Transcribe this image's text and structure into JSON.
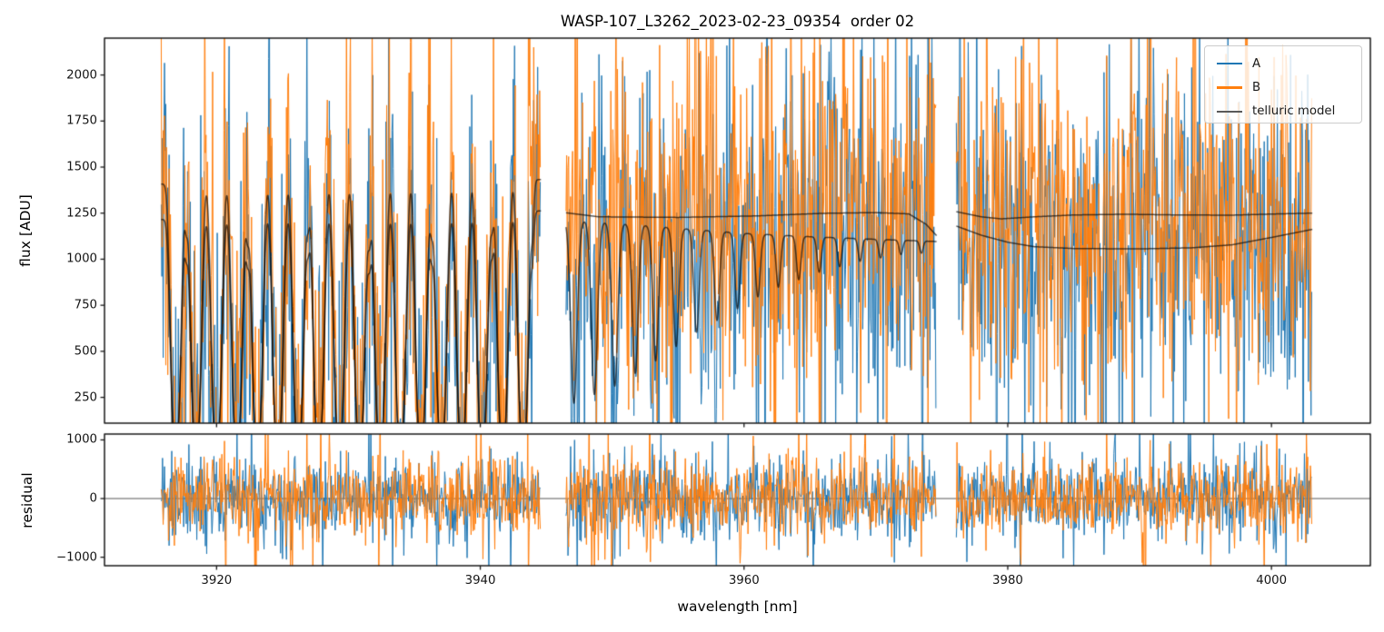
{
  "chart_data": {
    "type": "line",
    "title": "WASP-107_L3262_2023-02-23_09354  order 02",
    "xlabel": "wavelength [nm]",
    "xlim": [
      3911.5,
      4007.5
    ],
    "xticks": [
      3920,
      3940,
      3960,
      3980,
      4000
    ],
    "xtick_labels": [
      "3920",
      "3940",
      "3960",
      "3980",
      "4000"
    ],
    "panels": [
      {
        "id": "flux",
        "ylabel": "flux [ADU]",
        "ylim": [
          110,
          2200
        ],
        "yticks": [
          250,
          500,
          750,
          1000,
          1250,
          1500,
          1750,
          2000
        ],
        "ytick_labels": [
          "250",
          "500",
          "750",
          "1000",
          "1250",
          "1500",
          "1750",
          "2000"
        ],
        "zero_line": false
      },
      {
        "id": "residual",
        "ylabel": "residual",
        "ylim": [
          -1145,
          1100
        ],
        "yticks": [
          -1000,
          0,
          1000
        ],
        "ytick_labels": [
          "−1000",
          "0",
          "1000"
        ],
        "zero_line": true
      }
    ],
    "legend": [
      {
        "label": "A",
        "color": "#1f77b4"
      },
      {
        "label": "B",
        "color": "#ff7f0e"
      },
      {
        "label": "telluric model",
        "color": "#595959"
      }
    ],
    "style": {
      "model_color": "rgba(0,0,0,0.65)",
      "zero_line_color": "#595959",
      "spine_color": "#1a1a1a",
      "tick_color": "#1a1a1a",
      "data_linewidth": 1.0,
      "model_linewidth": 1.5
    },
    "sample_step_nm": 0.05,
    "segments": [
      {
        "range": [
          3915.8,
          3944.6
        ],
        "curves": [
          {
            "continuum": [
              [
                3915.8,
                1408
              ],
              [
                3930,
                1418
              ],
              [
                3944.6,
                1432
              ]
            ],
            "lines": true
          },
          {
            "continuum": [
              [
                3915.8,
                1215
              ],
              [
                3922,
                1252
              ],
              [
                3935,
                1248
              ],
              [
                3944.6,
                1262
              ]
            ],
            "lines": true
          }
        ],
        "lines": [
          {
            "c": 3916.9,
            "w": 0.5,
            "d": 1.0,
            "p": 3
          },
          {
            "c": 3918.45,
            "w": 0.5,
            "d": 1.0,
            "p": 3
          },
          {
            "c": 3920.0,
            "w": 0.5,
            "d": 1.0,
            "p": 3
          },
          {
            "c": 3921.55,
            "w": 0.5,
            "d": 1.0,
            "p": 3
          },
          {
            "c": 3923.1,
            "w": 0.5,
            "d": 1.0,
            "p": 3
          },
          {
            "c": 3924.65,
            "w": 0.5,
            "d": 1.0,
            "p": 3
          },
          {
            "c": 3926.2,
            "w": 0.5,
            "d": 1.0,
            "p": 3
          },
          {
            "c": 3927.75,
            "w": 0.5,
            "d": 1.0,
            "p": 3
          },
          {
            "c": 3929.3,
            "w": 0.5,
            "d": 1.0,
            "p": 3
          },
          {
            "c": 3930.85,
            "w": 0.5,
            "d": 1.0,
            "p": 3
          },
          {
            "c": 3932.4,
            "w": 0.5,
            "d": 1.0,
            "p": 3
          },
          {
            "c": 3933.95,
            "w": 0.5,
            "d": 1.0,
            "p": 3
          },
          {
            "c": 3935.5,
            "w": 0.5,
            "d": 1.0,
            "p": 3
          },
          {
            "c": 3937.05,
            "w": 0.5,
            "d": 1.0,
            "p": 3
          },
          {
            "c": 3938.6,
            "w": 0.5,
            "d": 1.0,
            "p": 3
          },
          {
            "c": 3940.15,
            "w": 0.5,
            "d": 1.0,
            "p": 3
          },
          {
            "c": 3941.7,
            "w": 0.5,
            "d": 1.0,
            "p": 3
          },
          {
            "c": 3943.25,
            "w": 0.5,
            "d": 1.0,
            "p": 3
          },
          {
            "c": 3917.7,
            "w": 0.18,
            "d": 0.16,
            "p": 2
          },
          {
            "c": 3922.35,
            "w": 0.2,
            "d": 0.2,
            "p": 2
          },
          {
            "c": 3926.95,
            "w": 0.18,
            "d": 0.15,
            "p": 2
          },
          {
            "c": 3931.6,
            "w": 0.2,
            "d": 0.22,
            "p": 2
          },
          {
            "c": 3936.3,
            "w": 0.2,
            "d": 0.18,
            "p": 2
          },
          {
            "c": 3940.9,
            "w": 0.18,
            "d": 0.16,
            "p": 2
          },
          {
            "c": 3943.95,
            "w": 0.16,
            "d": 0.18,
            "p": 2
          }
        ]
      },
      {
        "range": [
          3946.5,
          3974.6
        ],
        "curves": [
          {
            "continuum": [
              [
                3946.5,
                1252
              ],
              [
                3949,
                1230
              ],
              [
                3955,
                1227
              ],
              [
                3961,
                1235
              ],
              [
                3966,
                1249
              ],
              [
                3970,
                1253
              ],
              [
                3972.5,
                1246
              ],
              [
                3973.8,
                1190
              ],
              [
                3974.6,
                1128
              ]
            ],
            "lines": false
          },
          {
            "continuum": [
              [
                3946.5,
                1218
              ],
              [
                3950,
                1198
              ],
              [
                3955,
                1168
              ],
              [
                3960,
                1140
              ],
              [
                3965,
                1122
              ],
              [
                3970,
                1108
              ],
              [
                3974.6,
                1096
              ]
            ],
            "lines": true
          }
        ],
        "lines": [
          {
            "c": 3947.1,
            "w": 0.34,
            "d": 0.82,
            "p": 2
          },
          {
            "c": 3948.65,
            "w": 0.33,
            "d": 0.78,
            "p": 2
          },
          {
            "c": 3950.2,
            "w": 0.32,
            "d": 0.74,
            "p": 2
          },
          {
            "c": 3951.75,
            "w": 0.31,
            "d": 0.68,
            "p": 2
          },
          {
            "c": 3953.3,
            "w": 0.3,
            "d": 0.62,
            "p": 2
          },
          {
            "c": 3954.85,
            "w": 0.29,
            "d": 0.55,
            "p": 2
          },
          {
            "c": 3956.4,
            "w": 0.28,
            "d": 0.48,
            "p": 2
          },
          {
            "c": 3957.95,
            "w": 0.27,
            "d": 0.42,
            "p": 2
          },
          {
            "c": 3959.5,
            "w": 0.26,
            "d": 0.36,
            "p": 2
          },
          {
            "c": 3961.05,
            "w": 0.25,
            "d": 0.3,
            "p": 2
          },
          {
            "c": 3962.6,
            "w": 0.24,
            "d": 0.25,
            "p": 2
          },
          {
            "c": 3964.15,
            "w": 0.23,
            "d": 0.21,
            "p": 2
          },
          {
            "c": 3965.7,
            "w": 0.22,
            "d": 0.17,
            "p": 2
          },
          {
            "c": 3967.25,
            "w": 0.21,
            "d": 0.14,
            "p": 2
          },
          {
            "c": 3968.8,
            "w": 0.2,
            "d": 0.11,
            "p": 2
          },
          {
            "c": 3970.35,
            "w": 0.2,
            "d": 0.09,
            "p": 2
          },
          {
            "c": 3971.9,
            "w": 0.19,
            "d": 0.07,
            "p": 2
          },
          {
            "c": 3973.45,
            "w": 0.18,
            "d": 0.06,
            "p": 2
          }
        ]
      },
      {
        "range": [
          3976.1,
          4003.1
        ],
        "curves": [
          {
            "continuum": [
              [
                3976.1,
                1258
              ],
              [
                3978,
                1230
              ],
              [
                3979.5,
                1219
              ],
              [
                3982,
                1230
              ],
              [
                3985,
                1240
              ],
              [
                3989,
                1244
              ],
              [
                3993,
                1240
              ],
              [
                3997,
                1239
              ],
              [
                4000,
                1245
              ],
              [
                4003.1,
                1250
              ]
            ],
            "lines": false
          },
          {
            "continuum": [
              [
                3976.1,
                1180
              ],
              [
                3978,
                1130
              ],
              [
                3980,
                1092
              ],
              [
                3982,
                1068
              ],
              [
                3985,
                1058
              ],
              [
                3990,
                1056
              ],
              [
                3994,
                1062
              ],
              [
                3997,
                1078
              ],
              [
                4000,
                1118
              ],
              [
                4003.1,
                1162
              ]
            ],
            "lines": false
          }
        ],
        "lines": []
      }
    ],
    "series": [
      {
        "name": "A",
        "color": "#1f77b4",
        "curve": 1,
        "sigma": 440,
        "spike_prob": 0.13,
        "spike_sigma": 800,
        "seed": 101,
        "residual_seed": 301
      },
      {
        "name": "B",
        "color": "#ff7f0e",
        "curve": 0,
        "sigma": 440,
        "spike_prob": 0.13,
        "spike_sigma": 800,
        "seed": 202,
        "residual_seed": 402
      }
    ],
    "residual_noise": {
      "sigma": 330,
      "spike_prob": 0.12,
      "spike_sigma": 700
    }
  }
}
